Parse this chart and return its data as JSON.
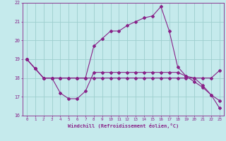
{
  "xlabel": "Windchill (Refroidissement éolien,°C)",
  "xlim": [
    -0.5,
    23.5
  ],
  "ylim": [
    16,
    22
  ],
  "yticks": [
    16,
    17,
    18,
    19,
    20,
    21,
    22
  ],
  "xticks": [
    0,
    1,
    2,
    3,
    4,
    5,
    6,
    7,
    8,
    9,
    10,
    11,
    12,
    13,
    14,
    15,
    16,
    17,
    18,
    19,
    20,
    21,
    22,
    23
  ],
  "bg_color": "#c5eaec",
  "grid_color": "#9dcece",
  "line_color": "#882288",
  "line1_x": [
    0,
    1,
    2,
    3,
    4,
    5,
    6,
    7,
    8,
    9,
    10,
    11,
    12,
    13,
    14,
    15,
    16,
    17,
    18,
    19,
    20,
    21,
    22,
    23
  ],
  "line1_y": [
    19.0,
    18.5,
    18.0,
    18.0,
    18.0,
    18.0,
    18.0,
    18.0,
    18.0,
    18.0,
    18.0,
    18.0,
    18.0,
    18.0,
    18.0,
    18.0,
    18.0,
    18.0,
    18.0,
    18.0,
    18.0,
    18.0,
    18.0,
    18.4
  ],
  "line2_x": [
    0,
    1,
    2,
    3,
    4,
    5,
    6,
    7,
    8,
    9,
    10,
    11,
    12,
    13,
    14,
    15,
    16,
    17,
    18,
    19,
    20,
    21,
    22,
    23
  ],
  "line2_y": [
    19.0,
    18.5,
    18.0,
    18.0,
    17.2,
    16.9,
    16.9,
    17.3,
    18.3,
    18.3,
    18.3,
    18.3,
    18.3,
    18.3,
    18.3,
    18.3,
    18.3,
    18.3,
    18.3,
    18.1,
    17.8,
    17.5,
    17.1,
    16.8
  ],
  "line3_x": [
    0,
    1,
    2,
    3,
    4,
    5,
    6,
    7,
    8,
    9,
    10,
    11,
    12,
    13,
    14,
    15,
    16,
    17,
    18,
    19,
    20,
    21,
    22,
    23
  ],
  "line3_y": [
    19.0,
    18.5,
    18.0,
    18.0,
    18.0,
    18.0,
    18.0,
    18.0,
    19.7,
    20.1,
    20.5,
    20.5,
    20.8,
    21.0,
    21.2,
    21.3,
    21.8,
    20.5,
    18.6,
    18.1,
    18.0,
    17.6,
    17.1,
    16.4
  ]
}
